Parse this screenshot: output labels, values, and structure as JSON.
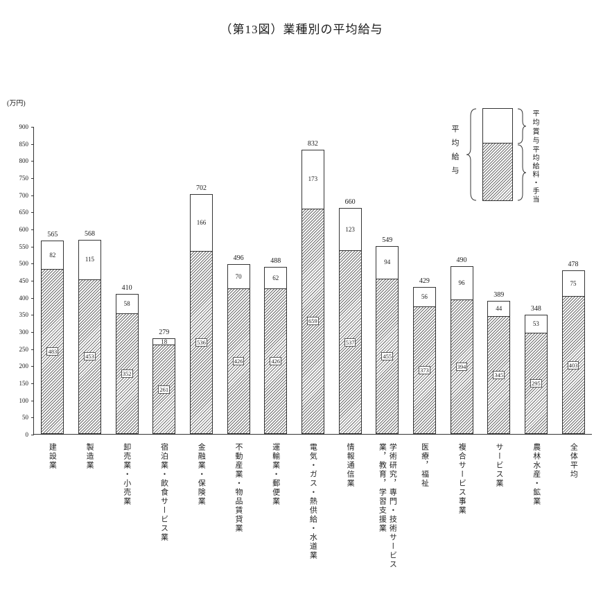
{
  "title": "（第13図）業種別の平均給与",
  "unit_label": "(万円)",
  "legend": {
    "total_label": "平均給与",
    "bonus_label": "平均賞与",
    "salary_label": "平均給料・手当"
  },
  "chart_data": {
    "type": "bar",
    "stacked": true,
    "title": "（第13図）業種別の平均給与",
    "ylabel": "(万円)",
    "ylim": [
      0,
      900
    ],
    "ytick_step": 50,
    "grid": false,
    "legend_position": "top-right",
    "categories": [
      "建設業",
      "製造業",
      "卸売業・小売業",
      "宿泊業・飲食サービス業",
      "金融業・保険業",
      "不動産業・物品賃貸業",
      "運輸業・郵便業",
      "電気・ガス・熱供給・水道業",
      "情報通信業",
      "学術研究，専門・技術サービス業，教育，学習支援業",
      "医療，福祉",
      "複合サービス事業",
      "サービス業",
      "農林水産・鉱業",
      "全体平均"
    ],
    "series": [
      {
        "name": "平均給料・手当",
        "values": [
          483,
          453,
          352,
          261,
          536,
          426,
          426,
          659,
          537,
          455,
          373,
          394,
          345,
          295,
          403
        ]
      },
      {
        "name": "平均賞与",
        "values": [
          82,
          115,
          58,
          18,
          166,
          70,
          62,
          173,
          123,
          94,
          56,
          96,
          44,
          53,
          75
        ]
      }
    ],
    "totals": [
      565,
      568,
      410,
      279,
      702,
      496,
      488,
      832,
      660,
      549,
      429,
      490,
      389,
      348,
      478
    ]
  }
}
